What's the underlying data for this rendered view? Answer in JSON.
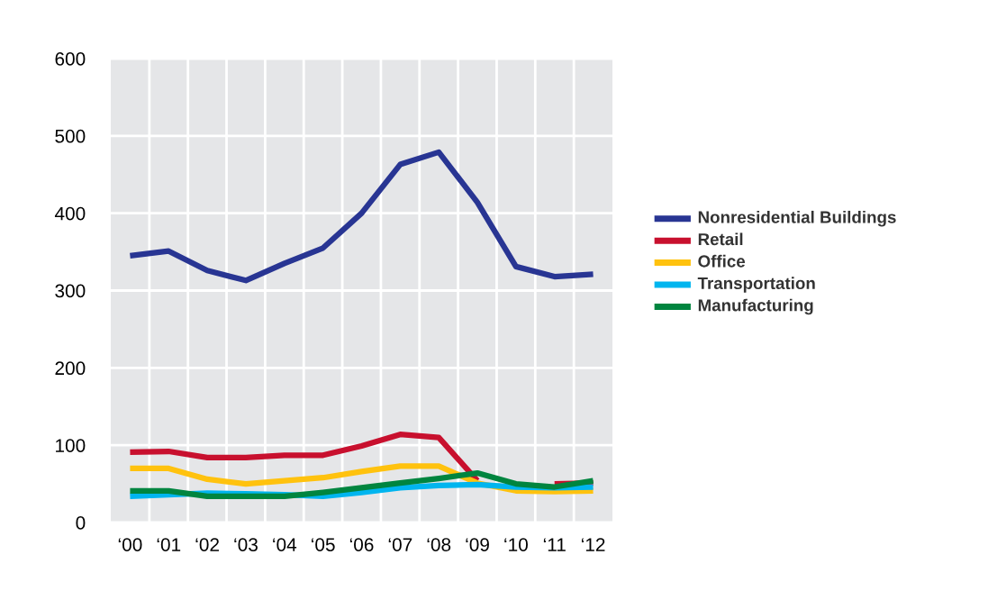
{
  "chart_data": {
    "type": "line",
    "categories": [
      "‘00",
      "‘01",
      "‘02",
      "‘03",
      "‘04",
      "‘05",
      "‘06",
      "‘07",
      "‘08",
      "‘09",
      "‘10",
      "‘11",
      "‘12"
    ],
    "series": [
      {
        "name": "Nonresidential Buildings",
        "color": "#283593",
        "values": [
          345,
          351,
          326,
          313,
          335,
          355,
          400,
          463,
          479,
          414,
          331,
          318,
          321
        ]
      },
      {
        "name": "Retail",
        "color": "#c8102e",
        "values": [
          91,
          92,
          84,
          84,
          87,
          87,
          99,
          114,
          110,
          54,
          null,
          50,
          51
        ]
      },
      {
        "name": "Office",
        "color": "#ffc20e",
        "values": [
          70,
          70,
          56,
          50,
          54,
          58,
          66,
          73,
          73,
          51,
          41,
          40,
          41
        ]
      },
      {
        "name": "Transportation",
        "color": "#00b5ef",
        "values": [
          34,
          36,
          38,
          37,
          36,
          34,
          39,
          45,
          48,
          49,
          46,
          45,
          46
        ]
      },
      {
        "name": "Manufacturing",
        "color": "#00853f",
        "values": [
          41,
          41,
          34,
          34,
          34,
          39,
          45,
          51,
          57,
          64,
          50,
          46,
          54
        ]
      }
    ],
    "ylim": [
      0,
      600
    ],
    "yticks": [
      0,
      100,
      200,
      300,
      400,
      500,
      600
    ],
    "grid": true,
    "legend": "right",
    "marker": "none",
    "line_style": "solid"
  }
}
